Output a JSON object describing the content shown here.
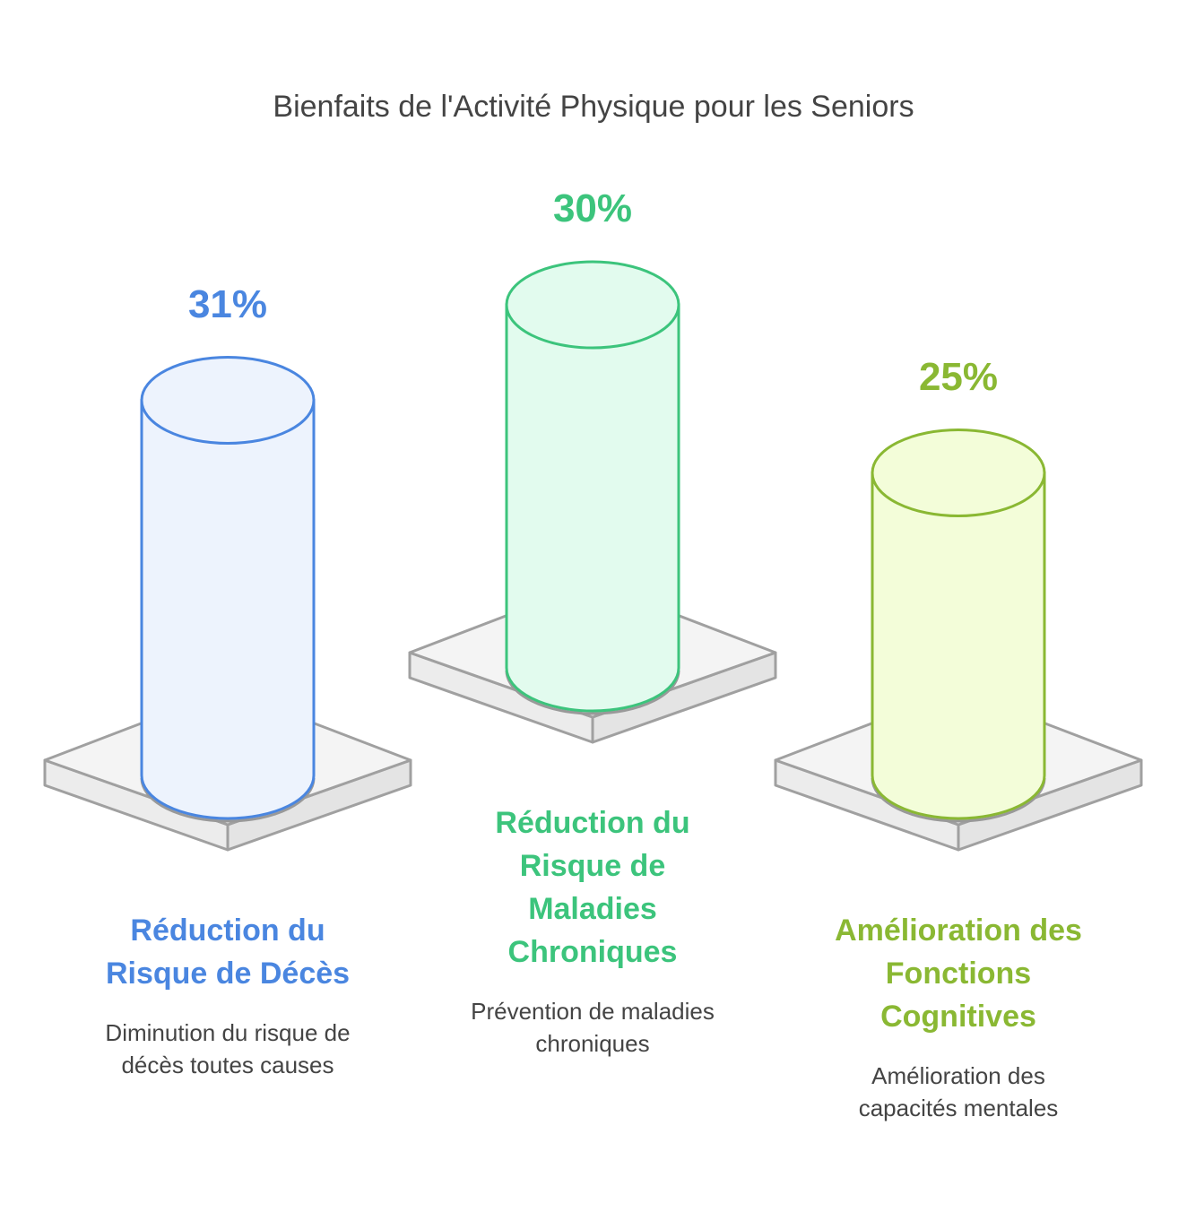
{
  "chart_data": {
    "type": "cylinder",
    "title": "Bienfaits de l'Activité Physique pour les Seniors",
    "categories": [
      "Réduction du Risque de Décès",
      "Réduction du Risque de Maladies Chroniques",
      "Amélioration des Fonctions Cognitives"
    ],
    "descriptions": [
      "Diminution du risque de décès toutes causes",
      "Prévention de maladies chroniques",
      "Amélioration des capacités mentales"
    ],
    "values": [
      31,
      30,
      25
    ],
    "value_labels": [
      "31%",
      "30%",
      "25%"
    ],
    "colors": [
      "#4a86e0",
      "#3cc47c",
      "#8ab833"
    ],
    "fills": [
      "#edf3fd",
      "#e2fbee",
      "#f3fdd9"
    ]
  }
}
